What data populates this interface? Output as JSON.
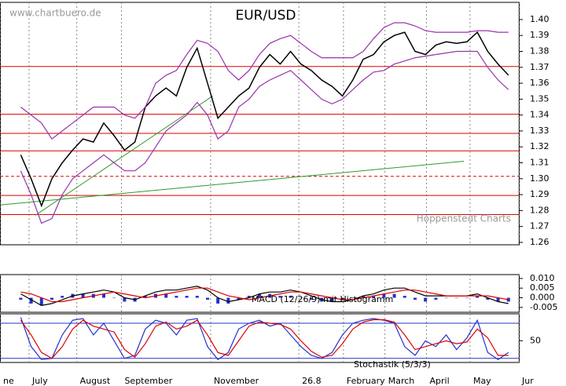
{
  "chart_data": [
    {
      "type": "line",
      "title": "EUR/USD",
      "watermark": "www.chartbuero.de",
      "source": "Hoppenstedt Charts",
      "x": [
        0,
        1,
        2,
        3,
        4,
        5,
        6,
        7,
        8,
        9,
        10,
        11,
        12,
        13,
        14,
        15,
        16,
        17,
        18,
        19,
        20,
        21,
        22,
        23,
        24,
        25,
        26,
        27,
        28,
        29,
        30,
        31,
        32,
        33,
        34,
        35,
        36,
        37,
        38,
        39,
        40,
        41,
        42,
        43,
        44,
        45,
        46,
        47
      ],
      "xlim": [
        -2,
        48
      ],
      "ylim": [
        1.2585,
        1.4108
      ],
      "yticks": [
        1.26,
        1.27,
        1.28,
        1.29,
        {
          "value": 1.3,
          "label": "1.30"
        },
        1.31,
        1.32,
        1.33,
        1.34,
        1.35,
        1.36,
        1.37,
        1.38,
        1.39,
        {
          "value": 1.4,
          "label": "1.40"
        }
      ],
      "series": [
        {
          "color": "#000000",
          "values": [
            1.315,
            1.3,
            1.283,
            1.3,
            1.31,
            1.318,
            1.325,
            1.323,
            1.335,
            1.327,
            1.318,
            1.323,
            1.345,
            1.352,
            1.357,
            1.352,
            1.37,
            1.382,
            1.36,
            1.338,
            1.345,
            1.352,
            1.357,
            1.37,
            1.378,
            1.372,
            1.38,
            1.372,
            1.368,
            1.362,
            1.358,
            1.352,
            1.362,
            1.375,
            1.378,
            1.386,
            1.39,
            1.392,
            1.38,
            1.378,
            1.384,
            1.386,
            1.385,
            1.386,
            1.392,
            1.38,
            1.372,
            1.365
          ]
        },
        {
          "color": "#9933aa",
          "values": [
            1.345,
            1.34,
            1.335,
            1.325,
            1.33,
            1.335,
            1.34,
            1.345,
            1.345,
            1.345,
            1.34,
            1.338,
            1.345,
            1.36,
            1.365,
            1.368,
            1.378,
            1.387,
            1.385,
            1.38,
            1.368,
            1.362,
            1.368,
            1.378,
            1.385,
            1.388,
            1.39,
            1.385,
            1.38,
            1.376,
            1.376,
            1.376,
            1.376,
            1.38,
            1.388,
            1.395,
            1.398,
            1.398,
            1.396,
            1.393,
            1.392,
            1.392,
            1.392,
            1.392,
            1.393,
            1.393,
            1.392,
            1.392
          ]
        },
        {
          "color": "#9933aa",
          "values": [
            1.305,
            1.29,
            1.272,
            1.275,
            1.29,
            1.3,
            1.305,
            1.31,
            1.315,
            1.31,
            1.305,
            1.305,
            1.31,
            1.32,
            1.33,
            1.335,
            1.34,
            1.348,
            1.34,
            1.325,
            1.33,
            1.345,
            1.35,
            1.358,
            1.362,
            1.365,
            1.368,
            1.362,
            1.356,
            1.35,
            1.347,
            1.35,
            1.356,
            1.362,
            1.367,
            1.368,
            1.372,
            1.374,
            1.376,
            1.377,
            1.378,
            1.379,
            1.38,
            1.38,
            1.38,
            1.37,
            1.362,
            1.356
          ]
        }
      ],
      "levels": [
        {
          "value": 1.3705,
          "style": "solid"
        },
        {
          "value": 1.3405,
          "style": "solid"
        },
        {
          "value": 1.3285,
          "style": "solid"
        },
        {
          "value": 1.3175,
          "style": "solid"
        },
        {
          "value": 1.3015,
          "style": "dashed"
        },
        {
          "value": 1.2895,
          "style": "solid"
        },
        {
          "value": 1.2775,
          "style": "solid"
        }
      ],
      "level_color": "#dd0000",
      "trendlines": [
        {
          "x": [
            -2,
            42.7
          ],
          "y": [
            1.2835,
            1.311
          ]
        },
        {
          "x": [
            1.4,
            18.5
          ],
          "y": [
            1.277,
            1.352
          ]
        }
      ],
      "trend_color": "#2e9a2e"
    },
    {
      "type": "line",
      "label": "MACD (12/26/9) mit Histogramm",
      "x": [
        0,
        1,
        2,
        3,
        4,
        5,
        6,
        7,
        8,
        9,
        10,
        11,
        12,
        13,
        14,
        15,
        16,
        17,
        18,
        19,
        20,
        21,
        22,
        23,
        24,
        25,
        26,
        27,
        28,
        29,
        30,
        31,
        32,
        33,
        34,
        35,
        36,
        37,
        38,
        39,
        40,
        41,
        42,
        43,
        44,
        45,
        46,
        47
      ],
      "xlim": [
        -2,
        48
      ],
      "ylim": [
        -0.0075,
        0.012
      ],
      "yticks": [
        {
          "value": -0.005,
          "label": "-0.005"
        },
        {
          "value": 0,
          "label": "0.000"
        },
        {
          "value": 0.005,
          "label": "0.005"
        },
        {
          "value": 0.01,
          "label": "0.010"
        }
      ],
      "series": [
        {
          "style": "histogram",
          "color": "#2233cc",
          "values": [
            -0.001,
            -0.003,
            -0.004,
            -0.001,
            0.001,
            0.002,
            0.002,
            0.002,
            0.002,
            0,
            -0.002,
            -0.002,
            0.001,
            0.002,
            0.002,
            0.001,
            0.001,
            0.001,
            -0.001,
            -0.003,
            -0.003,
            -0.001,
            0.001,
            0.002,
            0.002,
            0.001,
            0.001,
            0,
            -0.001,
            -0.002,
            -0.002,
            -0.001,
            0,
            0.001,
            0.001,
            0.002,
            0.002,
            0.001,
            -0.001,
            -0.002,
            -0.001,
            0,
            0,
            0,
            0.001,
            -0.001,
            -0.002,
            -0.002
          ]
        },
        {
          "style": "line",
          "color": "#000000",
          "values": [
            0.002,
            -0.001,
            -0.004,
            -0.003,
            -0.001,
            0.001,
            0.002,
            0.003,
            0.004,
            0.003,
            0,
            -0.001,
            0.001,
            0.003,
            0.004,
            0.004,
            0.005,
            0.006,
            0.004,
            0,
            -0.002,
            -0.001,
            0,
            0.002,
            0.003,
            0.003,
            0.004,
            0.003,
            0.001,
            -0.001,
            -0.002,
            -0.002,
            -0.001,
            0.001,
            0.002,
            0.004,
            0.005,
            0.005,
            0.003,
            0.001,
            0.001,
            0.001,
            0.001,
            0.001,
            0.002,
            0,
            -0.002,
            -0.003
          ]
        },
        {
          "style": "line",
          "color": "#dd0000",
          "values": [
            0.003,
            0.002,
            0,
            -0.002,
            -0.002,
            -0.001,
            0,
            0.001,
            0.002,
            0.003,
            0.002,
            0.001,
            0,
            0.001,
            0.002,
            0.003,
            0.004,
            0.005,
            0.005,
            0.003,
            0.001,
            0,
            -0.001,
            0,
            0.001,
            0.002,
            0.003,
            0.003,
            0.002,
            0.001,
            0,
            -0.001,
            -0.001,
            0,
            0.001,
            0.002,
            0.003,
            0.004,
            0.004,
            0.003,
            0.002,
            0.001,
            0.001,
            0.001,
            0.001,
            0.001,
            0,
            -0.001
          ]
        }
      ]
    },
    {
      "type": "line",
      "label": "Stochastik (5/3/3)",
      "x": [
        0,
        1,
        2,
        3,
        4,
        5,
        6,
        7,
        8,
        9,
        10,
        11,
        12,
        13,
        14,
        15,
        16,
        17,
        18,
        19,
        20,
        21,
        22,
        23,
        24,
        25,
        26,
        27,
        28,
        29,
        30,
        31,
        32,
        33,
        34,
        35,
        36,
        37,
        38,
        39,
        40,
        41,
        42,
        43,
        44,
        45,
        46,
        47
      ],
      "xlim": [
        -2,
        48
      ],
      "xticks": [
        {
          "value": -2,
          "label": "ne"
        },
        {
          "value": 0.8,
          "label": "July"
        },
        {
          "value": 5.4,
          "label": "August"
        },
        {
          "value": 9.7,
          "label": "September"
        },
        {
          "value": 18.3,
          "label": "November"
        },
        26.8,
        {
          "value": 31.1,
          "label": "February"
        },
        {
          "value": 35.1,
          "label": "March"
        },
        {
          "value": 39.1,
          "label": "April"
        },
        {
          "value": 43.3,
          "label": "May"
        },
        {
          "value": 48,
          "label": "Jur"
        }
      ],
      "ylim": [
        13,
        96
      ],
      "yticks": [
        50
      ],
      "levels": [
        {
          "value": 20,
          "style": "solid"
        },
        {
          "value": 80,
          "style": "solid"
        }
      ],
      "level_color": "#2233cc",
      "series": [
        {
          "style": "line",
          "color": "#2233cc",
          "values": [
            90,
            40,
            18,
            20,
            60,
            85,
            88,
            60,
            80,
            50,
            20,
            25,
            70,
            85,
            80,
            60,
            85,
            88,
            40,
            18,
            30,
            70,
            80,
            85,
            75,
            80,
            60,
            40,
            25,
            20,
            30,
            60,
            80,
            85,
            88,
            85,
            80,
            40,
            25,
            50,
            40,
            60,
            35,
            55,
            85,
            30,
            18,
            30
          ]
        },
        {
          "style": "line",
          "color": "#dd0000",
          "values": [
            85,
            60,
            30,
            20,
            40,
            70,
            85,
            75,
            70,
            65,
            35,
            22,
            45,
            75,
            82,
            70,
            75,
            85,
            60,
            30,
            25,
            50,
            75,
            82,
            80,
            78,
            70,
            50,
            32,
            22,
            25,
            45,
            70,
            82,
            86,
            86,
            82,
            60,
            35,
            40,
            45,
            50,
            45,
            48,
            70,
            55,
            25,
            25
          ]
        }
      ]
    }
  ]
}
